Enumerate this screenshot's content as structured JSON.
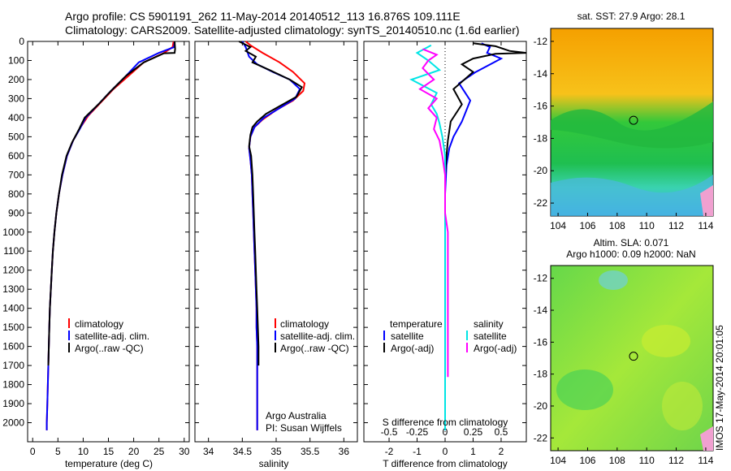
{
  "header": {
    "title_line1": "Argo profile: CS 5901191_262 11-May-2014 20140512_113 16.876S 109.111E",
    "title_line2": "Climatology: CARS2009. Satellite-adjusted climatology: synTS_20140510.nc (1.6d earlier)"
  },
  "stamp": "IMOS 17-May-2014 20:01:05",
  "colors": {
    "climatology": "#ff0000",
    "satellite": "#0000ff",
    "argo": "#000000",
    "s_satellite": "#00e5e5",
    "s_argo": "#ff00ff"
  },
  "chart_data": [
    {
      "type": "line",
      "id": "temperature",
      "xlabel": "temperature (deg C)",
      "ylabel": "",
      "xlim": [
        -1,
        31
      ],
      "ylim": [
        2100,
        0
      ],
      "xticks": [
        0,
        5,
        10,
        15,
        20,
        25,
        30
      ],
      "yticks": [
        0,
        100,
        200,
        300,
        400,
        500,
        600,
        700,
        800,
        900,
        1000,
        1100,
        1200,
        1300,
        1400,
        1500,
        1600,
        1700,
        1800,
        1900,
        2000
      ],
      "legend": [
        "climatology",
        "satellite-adj. clim.",
        "Argo(..raw -QC)"
      ],
      "series": [
        {
          "name": "climatology",
          "color": "#ff0000",
          "points": [
            [
              27.9,
              0
            ],
            [
              27.7,
              30
            ],
            [
              26,
              60
            ],
            [
              22,
              110
            ],
            [
              19,
              180
            ],
            [
              16,
              250
            ],
            [
              13.5,
              320
            ],
            [
              11,
              390
            ],
            [
              9.5,
              450
            ],
            [
              8,
              520
            ],
            [
              6.8,
              600
            ],
            [
              5.9,
              700
            ],
            [
              5.2,
              800
            ],
            [
              4.7,
              900
            ],
            [
              4.3,
              1000
            ],
            [
              4,
              1100
            ],
            [
              3.8,
              1200
            ],
            [
              3.6,
              1300
            ],
            [
              3.4,
              1400
            ],
            [
              3.3,
              1500
            ],
            [
              3.2,
              1600
            ],
            [
              3.1,
              1700
            ],
            [
              3,
              1800
            ],
            [
              2.9,
              1900
            ],
            [
              2.8,
              2000
            ],
            [
              2.8,
              2040
            ]
          ]
        },
        {
          "name": "satellite-adj. clim.",
          "color": "#0000ff",
          "points": [
            [
              28.1,
              0
            ],
            [
              28,
              30
            ],
            [
              25,
              60
            ],
            [
              21,
              110
            ],
            [
              18.5,
              180
            ],
            [
              15.5,
              260
            ],
            [
              13,
              330
            ],
            [
              10.5,
              400
            ],
            [
              9.3,
              460
            ],
            [
              8,
              520
            ],
            [
              6.8,
              600
            ],
            [
              5.9,
              700
            ],
            [
              5.2,
              800
            ],
            [
              4.7,
              900
            ],
            [
              4.3,
              1000
            ],
            [
              4,
              1100
            ],
            [
              3.8,
              1200
            ],
            [
              3.6,
              1300
            ],
            [
              3.4,
              1400
            ],
            [
              3.3,
              1500
            ],
            [
              3.2,
              1600
            ],
            [
              3.1,
              1700
            ],
            [
              3,
              1800
            ],
            [
              2.9,
              1900
            ],
            [
              2.8,
              2000
            ],
            [
              2.8,
              2040
            ]
          ]
        },
        {
          "name": "Argo(..raw -QC)",
          "color": "#000000",
          "points": [
            [
              28.1,
              0
            ],
            [
              28.2,
              40
            ],
            [
              28.1,
              60
            ],
            [
              26,
              62
            ],
            [
              22,
              110
            ],
            [
              18.5,
              180
            ],
            [
              15.5,
              260
            ],
            [
              13,
              330
            ],
            [
              10.3,
              400
            ],
            [
              9.2,
              460
            ],
            [
              7.8,
              530
            ],
            [
              6.7,
              600
            ],
            [
              5.8,
              700
            ],
            [
              5.2,
              800
            ],
            [
              4.7,
              900
            ],
            [
              4.3,
              1000
            ],
            [
              4,
              1100
            ],
            [
              3.8,
              1200
            ],
            [
              3.6,
              1300
            ],
            [
              3.4,
              1400
            ],
            [
              3.3,
              1500
            ],
            [
              3.2,
              1600
            ],
            [
              3.1,
              1700
            ]
          ]
        }
      ]
    },
    {
      "type": "line",
      "id": "salinity",
      "xlabel": "salinity",
      "ylabel": "",
      "xlim": [
        33.8,
        36.2
      ],
      "ylim": [
        2100,
        0
      ],
      "xticks": [
        34,
        34.5,
        35,
        35.5,
        36
      ],
      "legend": [
        "climatology",
        "satellite-adj. clim.",
        "Argo(..raw -QC)"
      ],
      "annotation": [
        "Argo Australia",
        "PI: Susan Wijffels"
      ],
      "series": [
        {
          "name": "climatology",
          "color": "#ff0000",
          "points": [
            [
              34.55,
              0
            ],
            [
              34.62,
              20
            ],
            [
              34.8,
              60
            ],
            [
              35.05,
              110
            ],
            [
              35.25,
              160
            ],
            [
              35.42,
              220
            ],
            [
              35.4,
              260
            ],
            [
              35.25,
              310
            ],
            [
              35,
              360
            ],
            [
              34.8,
              410
            ],
            [
              34.68,
              450
            ],
            [
              34.62,
              500
            ],
            [
              34.6,
              560
            ],
            [
              34.62,
              620
            ],
            [
              34.64,
              700
            ],
            [
              34.65,
              800
            ],
            [
              34.66,
              900
            ],
            [
              34.67,
              1000
            ],
            [
              34.68,
              1100
            ],
            [
              34.69,
              1200
            ],
            [
              34.7,
              1300
            ],
            [
              34.71,
              1400
            ],
            [
              34.71,
              1500
            ],
            [
              34.72,
              1600
            ],
            [
              34.72,
              1700
            ],
            [
              34.72,
              1800
            ],
            [
              34.72,
              1900
            ],
            [
              34.72,
              2000
            ],
            [
              34.72,
              2040
            ]
          ]
        },
        {
          "name": "satellite-adj. clim.",
          "color": "#0000ff",
          "points": [
            [
              34.5,
              0
            ],
            [
              34.55,
              30
            ],
            [
              34.6,
              80
            ],
            [
              34.72,
              120
            ],
            [
              34.95,
              160
            ],
            [
              35.2,
              200
            ],
            [
              35.35,
              250
            ],
            [
              35.28,
              300
            ],
            [
              35.05,
              350
            ],
            [
              34.82,
              400
            ],
            [
              34.68,
              450
            ],
            [
              34.62,
              500
            ],
            [
              34.6,
              560
            ],
            [
              34.62,
              620
            ],
            [
              34.64,
              700
            ],
            [
              34.65,
              800
            ],
            [
              34.66,
              900
            ],
            [
              34.67,
              1000
            ],
            [
              34.68,
              1100
            ],
            [
              34.69,
              1200
            ],
            [
              34.7,
              1300
            ],
            [
              34.71,
              1400
            ],
            [
              34.71,
              1500
            ],
            [
              34.72,
              1600
            ],
            [
              34.72,
              1700
            ],
            [
              34.72,
              1800
            ],
            [
              34.72,
              1900
            ],
            [
              34.72,
              2000
            ],
            [
              34.72,
              2040
            ]
          ]
        },
        {
          "name": "Argo(..raw -QC)",
          "color": "#000000",
          "points": [
            [
              34.45,
              0
            ],
            [
              34.62,
              30
            ],
            [
              34.55,
              50
            ],
            [
              34.7,
              80
            ],
            [
              34.65,
              110
            ],
            [
              34.9,
              150
            ],
            [
              35.2,
              200
            ],
            [
              35.38,
              240
            ],
            [
              35.3,
              290
            ],
            [
              35.05,
              340
            ],
            [
              34.85,
              380
            ],
            [
              34.72,
              420
            ],
            [
              34.65,
              450
            ],
            [
              34.62,
              490
            ],
            [
              34.6,
              550
            ],
            [
              34.63,
              600
            ],
            [
              34.65,
              700
            ],
            [
              34.66,
              800
            ],
            [
              34.67,
              900
            ],
            [
              34.68,
              1000
            ],
            [
              34.69,
              1100
            ],
            [
              34.7,
              1200
            ],
            [
              34.71,
              1300
            ],
            [
              34.72,
              1400
            ],
            [
              34.73,
              1500
            ],
            [
              34.74,
              1600
            ],
            [
              34.74,
              1700
            ]
          ]
        }
      ]
    },
    {
      "type": "line",
      "id": "difference",
      "xlabel": "T difference from climatology",
      "xlabel_top": "S difference from climatology",
      "xlim": [
        -2.9,
        2.9
      ],
      "ylim": [
        2100,
        0
      ],
      "xticks": [
        -2,
        -1,
        0,
        1,
        2
      ],
      "sticks": [
        "-0.5",
        "-0.25",
        "0",
        "0.25",
        "0.5"
      ],
      "legend_t_title": "temperature",
      "legend_s_title": "salinity",
      "legend": [
        "satellite",
        "Argo(-adj)",
        "satellite",
        "Argo(-adj)"
      ],
      "series": [
        {
          "name": "satellite",
          "color": "#0000ff",
          "points": [
            [
              1.3,
              10
            ],
            [
              1.6,
              30
            ],
            [
              1.5,
              60
            ],
            [
              2.0,
              90
            ],
            [
              1.1,
              160
            ],
            [
              0.5,
              220
            ],
            [
              0.9,
              310
            ],
            [
              0.6,
              420
            ],
            [
              0.3,
              500
            ],
            [
              0.15,
              560
            ],
            [
              0.05,
              650
            ],
            [
              0,
              800
            ],
            [
              0,
              1000
            ],
            [
              0,
              1200
            ],
            [
              0,
              1500
            ],
            [
              0,
              2040
            ]
          ]
        },
        {
          "name": "Argo(-adj)",
          "color": "#000000",
          "points": [
            [
              1.0,
              10
            ],
            [
              1.8,
              25
            ],
            [
              2.3,
              50
            ],
            [
              2.9,
              60
            ],
            [
              1.8,
              65
            ],
            [
              1.0,
              90
            ],
            [
              0.6,
              120
            ],
            [
              1.0,
              160
            ],
            [
              0.3,
              250
            ],
            [
              0.6,
              330
            ],
            [
              0.2,
              420
            ],
            [
              0.1,
              520
            ],
            [
              0.05,
              600
            ],
            [
              0,
              700
            ],
            [
              0,
              900
            ],
            [
              0,
              1200
            ],
            [
              0,
              1500
            ],
            [
              0,
              1760
            ]
          ]
        },
        {
          "name": "satellite",
          "color": "#00e5e5",
          "points": [
            [
              -0.5,
              20
            ],
            [
              -1.0,
              60
            ],
            [
              -0.6,
              100
            ],
            [
              -0.2,
              150
            ],
            [
              -1.2,
              200
            ],
            [
              -0.3,
              270
            ],
            [
              -0.5,
              330
            ],
            [
              -0.3,
              380
            ],
            [
              -0.2,
              430
            ],
            [
              -0.1,
              500
            ],
            [
              0,
              600
            ],
            [
              0,
              800
            ],
            [
              0,
              1200
            ],
            [
              0,
              1500
            ],
            [
              0,
              2040
            ]
          ]
        },
        {
          "name": "Argo(-adj)",
          "color": "#ff00ff",
          "points": [
            [
              -0.8,
              40
            ],
            [
              -0.3,
              70
            ],
            [
              -0.6,
              100
            ],
            [
              -0.8,
              140
            ],
            [
              -0.4,
              200
            ],
            [
              -0.9,
              250
            ],
            [
              -0.3,
              300
            ],
            [
              -0.6,
              350
            ],
            [
              -0.3,
              400
            ],
            [
              -0.4,
              460
            ],
            [
              -0.2,
              520
            ],
            [
              -0.1,
              600
            ],
            [
              0,
              700
            ],
            [
              0,
              900
            ],
            [
              0.1,
              1000
            ],
            [
              0.1,
              1200
            ],
            [
              0.1,
              1400
            ],
            [
              0.1,
              1600
            ],
            [
              0.1,
              1760
            ]
          ]
        }
      ]
    },
    {
      "type": "heatmap",
      "id": "sst_map",
      "title": "sat. SST: 27.9 Argo: 28.1",
      "xlim": [
        103.5,
        114.5
      ],
      "ylim": [
        -22.8,
        -11.2
      ],
      "xticks": [
        104,
        106,
        108,
        110,
        112,
        114
      ],
      "yticks": [
        -12,
        -14,
        -16,
        -18,
        -20,
        -22
      ],
      "marker": [
        109.11,
        -16.88
      ]
    },
    {
      "type": "heatmap",
      "id": "sla_map",
      "title": "Altim. SLA: 0.071",
      "subtitle": "Argo h1000: 0.09 h2000: NaN",
      "xlim": [
        103.5,
        114.5
      ],
      "ylim": [
        -22.8,
        -11.2
      ],
      "xticks": [
        104,
        106,
        108,
        110,
        112,
        114
      ],
      "yticks": [
        -12,
        -14,
        -16,
        -18,
        -20,
        -22
      ],
      "marker": [
        109.11,
        -16.88
      ]
    }
  ]
}
